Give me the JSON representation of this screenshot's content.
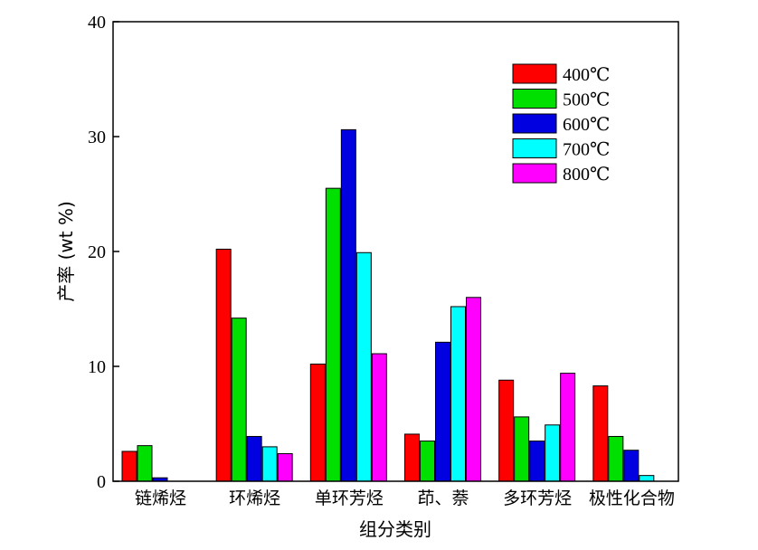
{
  "chart_data": {
    "type": "bar",
    "title": "",
    "xlabel": "组分类别",
    "ylabel": "产率 (wt %)",
    "ylim": [
      0,
      40
    ],
    "yticks": [
      0,
      10,
      20,
      30,
      40
    ],
    "grid": false,
    "legend_position": "top-right",
    "categories": [
      "链烯烃",
      "环烯烃",
      "单环芳烃",
      "茚、萘",
      "多环芳烃",
      "极性化合物"
    ],
    "series": [
      {
        "name": "400℃",
        "color": "#ff0000",
        "values": [
          2.6,
          20.2,
          10.2,
          4.1,
          8.8,
          8.3
        ]
      },
      {
        "name": "500℃",
        "color": "#00e000",
        "values": [
          3.1,
          14.2,
          25.5,
          3.5,
          5.6,
          3.9
        ]
      },
      {
        "name": "600℃",
        "color": "#0000e0",
        "values": [
          0.3,
          3.9,
          30.6,
          12.1,
          3.5,
          2.7
        ]
      },
      {
        "name": "700℃",
        "color": "#00ffff",
        "values": [
          0.0,
          3.0,
          19.9,
          15.2,
          4.9,
          0.5
        ]
      },
      {
        "name": "800℃",
        "color": "#ff00ff",
        "values": [
          0.0,
          2.4,
          11.1,
          16.0,
          9.4,
          0.0
        ]
      }
    ]
  }
}
